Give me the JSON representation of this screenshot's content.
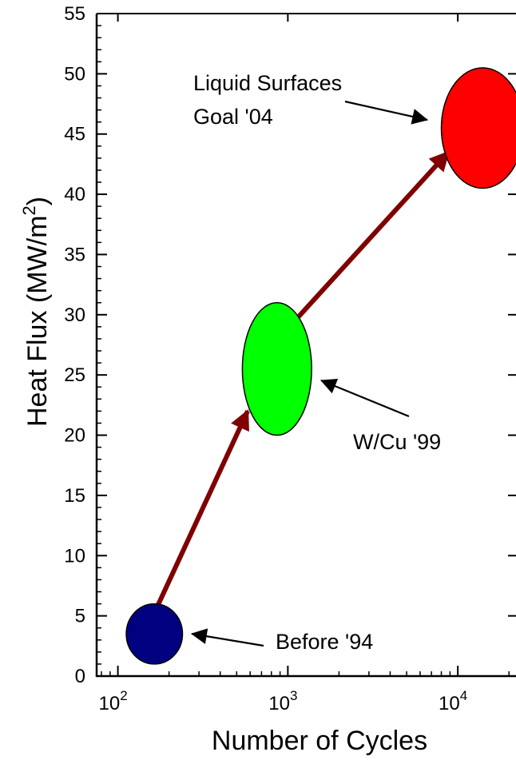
{
  "chart_data": {
    "type": "scatter",
    "title": "",
    "xlabel": "Number of Cycles",
    "ylabel": "Heat Flux (MW/m²)",
    "ylabel_parts": {
      "main": "Heat Flux (MW/m",
      "sup": "2",
      "close": ")"
    },
    "x_scale": "log",
    "xlim": [
      75,
      22000
    ],
    "ylim": [
      0,
      55
    ],
    "grid": false,
    "x_ticks": [
      {
        "value": 100,
        "base": "10",
        "exp": "2"
      },
      {
        "value": 1000,
        "base": "10",
        "exp": "3"
      },
      {
        "value": 10000,
        "base": "10",
        "exp": "4"
      }
    ],
    "y_ticks": [
      {
        "value": 0,
        "label": "0"
      },
      {
        "value": 5,
        "label": "5"
      },
      {
        "value": 10,
        "label": "10"
      },
      {
        "value": 15,
        "label": "15"
      },
      {
        "value": 20,
        "label": "20"
      },
      {
        "value": 25,
        "label": "25"
      },
      {
        "value": 30,
        "label": "30"
      },
      {
        "value": 35,
        "label": "35"
      },
      {
        "value": 40,
        "label": "40"
      },
      {
        "value": 45,
        "label": "45"
      },
      {
        "value": 50,
        "label": "50"
      },
      {
        "value": 55,
        "label": "55"
      }
    ],
    "points": [
      {
        "label": "Before '94",
        "x": 150,
        "y": 3.5,
        "x_range": [
          112,
          240
        ],
        "y_range": [
          1.0,
          6.0
        ],
        "color": "#000080"
      },
      {
        "label": "W/Cu '99",
        "x": 820,
        "y": 25.5,
        "x_range": [
          540,
          1380
        ],
        "y_range": [
          20.0,
          31.0
        ],
        "color": "#00ff00"
      },
      {
        "label": "Liquid Surfaces Goal '04",
        "label_lines": [
          "Liquid Surfaces",
          "Goal '04"
        ],
        "x": 14000,
        "y": 45.5,
        "x_range": [
          8000,
          24500
        ],
        "y_range": [
          40.5,
          50.5
        ],
        "color": "#ff0000"
      }
    ],
    "trend_arrows": [
      {
        "from": {
          "x": 155,
          "y": 4.5
        },
        "to": {
          "x": 580,
          "y": 22.0
        }
      },
      {
        "from": {
          "x": 1100,
          "y": 29.5
        },
        "to": {
          "x": 8800,
          "y": 43.5
        }
      }
    ],
    "trend_color": "#800000"
  }
}
